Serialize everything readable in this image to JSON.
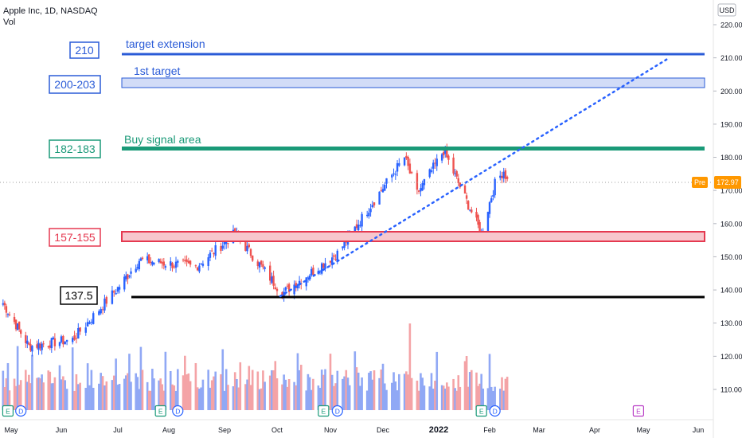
{
  "header": {
    "symbol": "Apple Inc, 1D, NASDAQ",
    "volume_label": "Vol",
    "currency": "USD"
  },
  "price_axis": {
    "ticks": [
      "220.00",
      "210.00",
      "200.00",
      "190.00",
      "180.00",
      "170.00",
      "160.00",
      "150.00",
      "140.00",
      "130.00",
      "120.00",
      "110.00"
    ],
    "last_price": "172.97",
    "session_tag": "Pre"
  },
  "time_axis": {
    "labels": [
      "May",
      "Jun",
      "Jul",
      "Aug",
      "Sep",
      "Oct",
      "Nov",
      "Dec",
      "2022",
      "Feb",
      "Mar",
      "Apr",
      "May",
      "Jun"
    ]
  },
  "annotations": {
    "target_ext_box": "210",
    "target_ext_label": "target extension",
    "first_target_box": "200-203",
    "first_target_label": "1st target",
    "buy_box": "182-183",
    "buy_label": "Buy signal area",
    "support_box": "157-155",
    "floor_box": "137.5"
  },
  "event_markers": {
    "earnings_letter": "E",
    "dividend_letter": "D"
  },
  "colors": {
    "up": "#2962ff",
    "down": "#ef5350",
    "vol_up": "#90a8f5",
    "vol_down": "#f4a3a6",
    "target_blue": "#2a5bd7",
    "buy_green": "#1a9a78",
    "support_red": "#e53950",
    "floor_black": "#000000",
    "pre_orange": "#ff9800",
    "earnings_purple": "#b93ec6"
  },
  "chart_data": {
    "type": "candlestick",
    "symbol": "Apple Inc",
    "interval": "1D",
    "exchange": "NASDAQ",
    "ylim": [
      103,
      223
    ],
    "price_levels": [
      {
        "label": "210",
        "value": 211
      },
      {
        "label": "200-203",
        "low": 201,
        "high": 203.5
      },
      {
        "label": "182-183",
        "low": 182,
        "high": 183
      },
      {
        "label": "157-155",
        "low": 155,
        "high": 157.5
      },
      {
        "label": "137.5",
        "value": 138
      }
    ],
    "trendline": {
      "from": {
        "date": "2021-09-30",
        "price": 138
      },
      "to": {
        "date": "2022-05-09",
        "price": 210
      },
      "style": "dotted"
    },
    "key_points": [
      {
        "date": "2021-04-26",
        "price": 136
      },
      {
        "date": "2021-05-12",
        "price": 123
      },
      {
        "date": "2021-06-07",
        "price": 125
      },
      {
        "date": "2021-07-14",
        "price": 149
      },
      {
        "date": "2021-08-16",
        "price": 147
      },
      {
        "date": "2021-09-07",
        "price": 157
      },
      {
        "date": "2021-10-04",
        "price": 139
      },
      {
        "date": "2021-11-05",
        "price": 151
      },
      {
        "date": "2021-12-13",
        "price": 180
      },
      {
        "date": "2021-12-20",
        "price": 169
      },
      {
        "date": "2022-01-04",
        "price": 182
      },
      {
        "date": "2022-01-27",
        "price": 157
      },
      {
        "date": "2022-02-04",
        "price": 172
      },
      {
        "date": "2022-02-09",
        "price": 176
      },
      {
        "date": "2022-02-11",
        "price": 172.97
      }
    ]
  }
}
